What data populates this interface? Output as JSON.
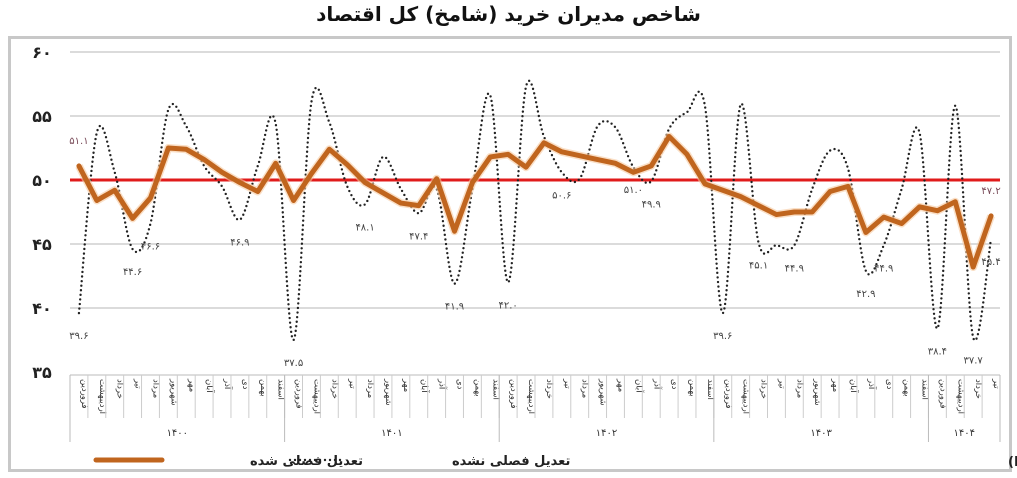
{
  "chart_data": {
    "type": "line",
    "title": "شاخص مدیران خرید (شامخ) کل اقتصاد",
    "ylim": [
      35,
      60
    ],
    "yticks": [
      35,
      40,
      45,
      50,
      55,
      60
    ],
    "ytick_labels": [
      "۳۵",
      "۴۰",
      "۴۵",
      "۵۰",
      "۵۵",
      "۶۰"
    ],
    "reference_line": {
      "value": 50,
      "color": "#e01b1b"
    },
    "grid": true,
    "months": [
      "فروردین",
      "اردیبهشت",
      "خرداد",
      "تیر",
      "مرداد",
      "شهریور",
      "مهر",
      "آبان",
      "آذر",
      "دی",
      "بهمن",
      "اسفند"
    ],
    "years": [
      {
        "label": "۱۴۰۰",
        "months": 12
      },
      {
        "label": "۱۴۰۱",
        "months": 12
      },
      {
        "label": "۱۴۰۲",
        "months": 12
      },
      {
        "label": "۱۴۰۳",
        "months": 12
      },
      {
        "label": "۱۴۰۴",
        "months": 4
      }
    ],
    "series": [
      {
        "name": "تعدیل فصلی شده",
        "style": "solid",
        "color": "#c0651e",
        "values": [
          51.1,
          48.4,
          49.2,
          47.0,
          48.6,
          52.5,
          52.4,
          51.6,
          50.6,
          49.8,
          49.1,
          51.3,
          48.4,
          50.5,
          52.4,
          51.2,
          49.8,
          49.0,
          48.2,
          48.0,
          50.1,
          46.0,
          49.8,
          51.8,
          52.0,
          51.0,
          52.9,
          52.2,
          51.9,
          51.6,
          51.3,
          50.6,
          51.1,
          53.4,
          52.0,
          49.7,
          49.2,
          48.7,
          48.0,
          47.3,
          47.5,
          47.5,
          49.1,
          49.5,
          45.9,
          47.1,
          46.6,
          47.9,
          47.6,
          48.3,
          43.2,
          47.2
        ]
      },
      {
        "name": "تعدیل فصلی نشده",
        "style": "dotted",
        "color": "#222222",
        "values": [
          39.6,
          53.7,
          50.6,
          44.6,
          46.6,
          55.5,
          54.2,
          51.1,
          49.5,
          46.9,
          51.1,
          54.4,
          37.5,
          56.1,
          54.5,
          49.5,
          48.1,
          51.8,
          49.3,
          47.4,
          49.3,
          41.9,
          49.3,
          56.6,
          42.0,
          57.3,
          53.4,
          50.6,
          50.1,
          54.2,
          54.1,
          51.0,
          49.9,
          54.0,
          55.3,
          55.8,
          39.6,
          55.9,
          45.1,
          44.9,
          44.9,
          49.3,
          52.3,
          50.9,
          42.9,
          44.9,
          49.3,
          53.7,
          38.4,
          55.8,
          37.7,
          45.4
        ]
      }
    ],
    "data_labels": [
      {
        "series": 0,
        "index": 0,
        "text": "۵۱.۱"
      },
      {
        "series": 0,
        "index": 51,
        "text": "۴۷.۲"
      },
      {
        "series": 1,
        "index": 0,
        "text": "۳۹.۶"
      },
      {
        "series": 1,
        "index": 3,
        "text": "۴۴.۶"
      },
      {
        "series": 1,
        "index": 4,
        "text": "۴۶.۶"
      },
      {
        "series": 1,
        "index": 9,
        "text": "۴۶.۹"
      },
      {
        "series": 1,
        "index": 12,
        "text": "۳۷.۵"
      },
      {
        "series": 1,
        "index": 16,
        "text": "۴۸.۱"
      },
      {
        "series": 1,
        "index": 19,
        "text": "۴۷.۴"
      },
      {
        "series": 1,
        "index": 21,
        "text": "۴۱.۹"
      },
      {
        "series": 1,
        "index": 24,
        "text": "۴۲.۰"
      },
      {
        "series": 1,
        "index": 27,
        "text": "۵۰.۶"
      },
      {
        "series": 1,
        "index": 31,
        "text": "۵۱.۰"
      },
      {
        "series": 1,
        "index": 32,
        "text": "۴۹.۹"
      },
      {
        "series": 1,
        "index": 36,
        "text": "۳۹.۶"
      },
      {
        "series": 1,
        "index": 38,
        "text": "۴۵.۱"
      },
      {
        "series": 1,
        "index": 40,
        "text": "۴۴.۹"
      },
      {
        "series": 1,
        "index": 44,
        "text": "۴۲.۹"
      },
      {
        "series": 1,
        "index": 45,
        "text": "۴۴.۹"
      },
      {
        "series": 1,
        "index": 48,
        "text": "۳۸.۴"
      },
      {
        "series": 1,
        "index": 50,
        "text": "۳۷.۷"
      },
      {
        "series": 1,
        "index": 51,
        "text": "۴۵.۴"
      }
    ],
    "legend": {
      "placement": "bottom-left"
    },
    "source": "منبع: اتاق بازرگانی، صنایع، معادن و کشاورزی ایران (ICCIMA)"
  }
}
